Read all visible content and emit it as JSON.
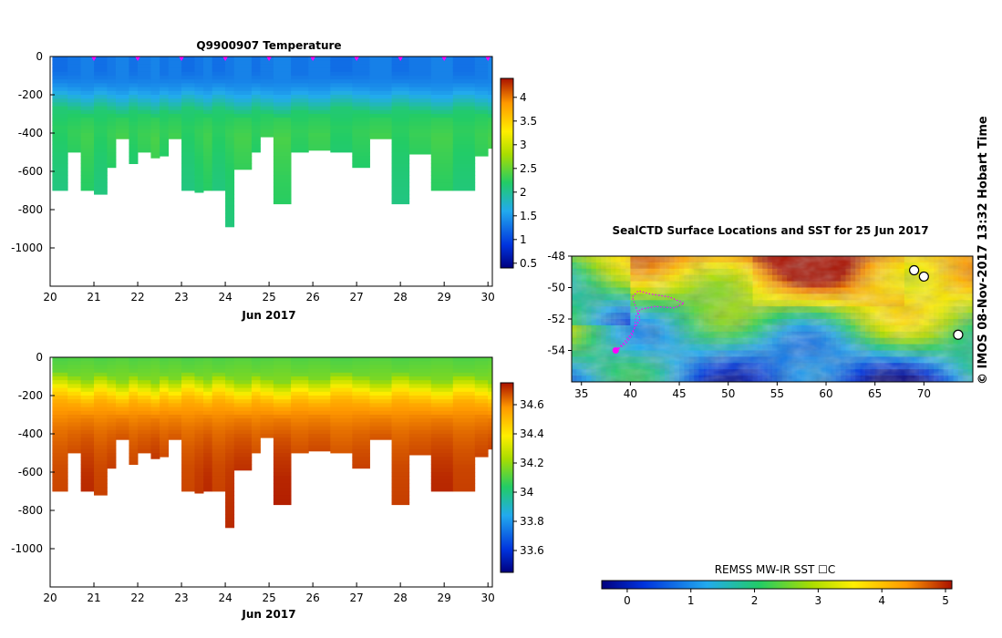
{
  "chart_data": [
    {
      "type": "heatmap",
      "title": "Q9900907  Temperature",
      "xlabel": "Jun 2017",
      "ylabel": "",
      "xlim": [
        20,
        30.1
      ],
      "ylim": [
        -1200,
        0
      ],
      "x_ticks": [
        "20",
        "21",
        "22",
        "23",
        "24",
        "25",
        "26",
        "27",
        "28",
        "29",
        "30"
      ],
      "y_ticks": [
        "0",
        "-200",
        "-400",
        "-600",
        "-800",
        "-1000"
      ],
      "y_tick_values": [
        0,
        -200,
        -400,
        -600,
        -800,
        -1000
      ],
      "profile_markers_day": [
        21,
        22,
        23,
        24,
        25,
        26,
        27,
        28,
        29,
        30
      ],
      "colorbar": {
        "min": 0.4,
        "max": 4.4,
        "ticks": [
          "0.5",
          "1",
          "1.5",
          "2",
          "2.5",
          "3",
          "3.5",
          "4"
        ],
        "tick_values": [
          0.5,
          1,
          1.5,
          2,
          2.5,
          3,
          3.5,
          4
        ]
      },
      "profile_day_start": [
        20.05,
        20.4,
        20.7,
        21.0,
        21.3,
        21.5,
        21.8,
        22.0,
        22.3,
        22.5,
        22.7,
        23.0,
        23.3,
        23.5,
        23.7,
        24.0,
        24.2,
        24.6,
        24.8,
        25.1,
        25.5,
        25.9,
        26.4,
        26.9,
        27.3,
        27.8,
        28.2,
        28.7,
        29.2,
        29.7,
        30.0
      ],
      "profile_day_end": [
        20.4,
        20.7,
        21.0,
        21.3,
        21.5,
        21.8,
        22.0,
        22.3,
        22.5,
        22.7,
        23.0,
        23.3,
        23.5,
        23.7,
        24.0,
        24.2,
        24.6,
        24.8,
        25.1,
        25.5,
        25.9,
        26.4,
        26.9,
        27.3,
        27.8,
        28.2,
        28.7,
        29.2,
        29.7,
        30.0,
        30.1
      ],
      "profile_max_depth": [
        -700,
        -500,
        -700,
        -720,
        -580,
        -430,
        -560,
        -500,
        -530,
        -520,
        -430,
        -700,
        -710,
        -700,
        -700,
        -890,
        -590,
        -500,
        -420,
        -770,
        -500,
        -490,
        -500,
        -580,
        -430,
        -770,
        -510,
        -700,
        -700,
        -520,
        -480
      ],
      "depth_levels": [
        0,
        -100,
        -150,
        -200,
        -250,
        -300,
        -400,
        -600,
        -900
      ],
      "temperature_values": [
        1.3,
        1.3,
        1.4,
        1.6,
        1.9,
        2.2,
        2.3,
        2.2,
        2.1
      ]
    },
    {
      "type": "heatmap",
      "title": "",
      "xlabel": "Jun 2017",
      "ylabel": "",
      "xlim": [
        20,
        30.1
      ],
      "ylim": [
        -1200,
        0
      ],
      "x_ticks": [
        "20",
        "21",
        "22",
        "23",
        "24",
        "25",
        "26",
        "27",
        "28",
        "29",
        "30"
      ],
      "y_ticks": [
        "0",
        "-200",
        "-400",
        "-600",
        "-800",
        "-1000"
      ],
      "y_tick_values": [
        0,
        -200,
        -400,
        -600,
        -800,
        -1000
      ],
      "colorbar": {
        "min": 33.45,
        "max": 34.75,
        "ticks": [
          "33.6",
          "33.8",
          "34",
          "34.2",
          "34.4",
          "34.6"
        ],
        "tick_values": [
          33.6,
          33.8,
          34.0,
          34.2,
          34.4,
          34.6
        ]
      },
      "depth_levels": [
        0,
        -100,
        -150,
        -200,
        -250,
        -300,
        -400,
        -500,
        -600,
        -900
      ],
      "salinity_values": [
        34.1,
        34.15,
        34.3,
        34.45,
        34.55,
        34.6,
        34.65,
        34.68,
        34.7,
        34.72
      ]
    },
    {
      "type": "heatmap",
      "title": "SealCTD Surface Locations and SST for 25 Jun 2017",
      "xlabel": "",
      "ylabel": "",
      "xlim": [
        34,
        75
      ],
      "ylim": [
        -56,
        -48
      ],
      "x_ticks": [
        "35",
        "40",
        "45",
        "50",
        "55",
        "60",
        "65",
        "70"
      ],
      "x_tick_values": [
        35,
        40,
        45,
        50,
        55,
        60,
        65,
        70
      ],
      "y_ticks": [
        "-48",
        "-50",
        "-52",
        "-54"
      ],
      "y_tick_values": [
        -48,
        -50,
        -52,
        -54
      ],
      "colorbar": {
        "label": "REMSS MW-IR SST ☐C",
        "min": -0.4,
        "max": 5.1,
        "ticks": [
          "0",
          "1",
          "2",
          "3",
          "4",
          "5"
        ],
        "tick_values": [
          0,
          1,
          2,
          3,
          4,
          5
        ]
      },
      "seal_track": {
        "lon": [
          38.5,
          39.2,
          40.0,
          40.5,
          41.0,
          40.6,
          40.2,
          40.8,
          42.0,
          44.0,
          45.5,
          44.5,
          42.5,
          41.0,
          40.6,
          40.5,
          40.4,
          40.2,
          39.6,
          39.0,
          38.6
        ],
        "lat": [
          -54.0,
          -53.6,
          -53.0,
          -52.5,
          -52.0,
          -51.3,
          -50.6,
          -50.2,
          -50.4,
          -50.6,
          -51.0,
          -51.3,
          -51.2,
          -51.4,
          -51.8,
          -52.2,
          -52.6,
          -53.0,
          -53.5,
          -53.8,
          -54.0
        ]
      },
      "white_markers": [
        {
          "lon": 69.0,
          "lat": -48.9
        },
        {
          "lon": 70.0,
          "lat": -49.3
        },
        {
          "lon": 73.5,
          "lat": -53.0
        }
      ]
    }
  ],
  "credit": "©  IMOS 08-Nov-2017 13:32 Hobart Time",
  "colors": {
    "track": "#ff00ff",
    "marker": "#ff00ff",
    "land": "#ffffff"
  }
}
